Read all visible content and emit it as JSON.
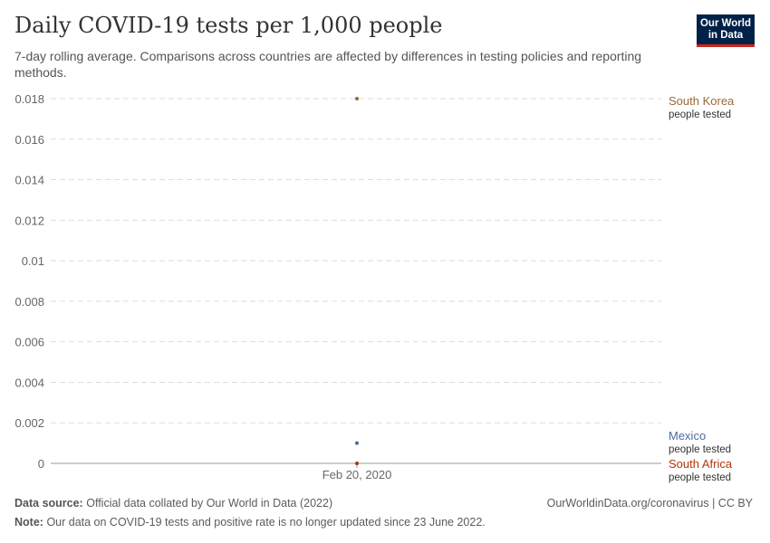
{
  "title": "Daily COVID-19 tests per 1,000 people",
  "subtitle": "7-day rolling average. Comparisons across countries are affected by differences in testing policies and reporting methods.",
  "logo": "Our World in Data",
  "footer": {
    "source_label": "Data source:",
    "source": "Official data collated by Our World in Data (2022)",
    "url": "OurWorldinData.org/coronavirus | CC BY",
    "note_label": "Note:",
    "note": "Our data on COVID-19 tests and positive rate is no longer updated since 23 June 2022."
  },
  "chart_data": {
    "type": "scatter",
    "title": "Daily COVID-19 tests per 1,000 people",
    "x": [
      "Feb 20, 2020"
    ],
    "ylim": [
      0,
      0.018
    ],
    "yticks": [
      "0",
      "0.002",
      "0.004",
      "0.006",
      "0.008",
      "0.01",
      "0.012",
      "0.014",
      "0.016",
      "0.018"
    ],
    "grid": true,
    "legend": "right",
    "series": [
      {
        "name": "South Korea",
        "sub": "people tested",
        "color": "#9a6a3a",
        "values": [
          0.018
        ]
      },
      {
        "name": "Mexico",
        "sub": "people tested",
        "color": "#4c6a9c",
        "values": [
          0.001
        ]
      },
      {
        "name": "South Africa",
        "sub": "people tested",
        "color": "#b13507",
        "values": [
          0
        ]
      }
    ]
  }
}
